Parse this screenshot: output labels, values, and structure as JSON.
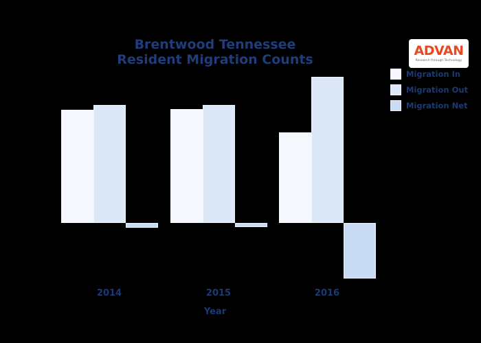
{
  "page": {
    "background": "#000000"
  },
  "title": {
    "line1": "Brentwood Tennessee",
    "line2": "Resident Migration Counts",
    "color": "#1f3d7a"
  },
  "logo": {
    "brand": "ADVAN",
    "tagline": "Research through Technology",
    "brand_color": "#e8491f",
    "box_color": "#ffffff"
  },
  "legend": {
    "items": [
      {
        "label": "Migration In",
        "color": "#f5f8fd"
      },
      {
        "label": "Migration Out",
        "color": "#dce7f8"
      },
      {
        "label": "Migration Net",
        "color": "#c9dcf3"
      }
    ],
    "position": "upper right"
  },
  "x_axis": {
    "label": "Year",
    "ticks": [
      "2014",
      "2015",
      "2016"
    ]
  },
  "chart_data": {
    "type": "bar",
    "title": "Brentwood Tennessee Resident Migration Counts",
    "categories": [
      "2014",
      "2015",
      "2016"
    ],
    "series": [
      {
        "name": "Migration In",
        "color": "#f5f8fd",
        "values": [
          165,
          166,
          132
        ]
      },
      {
        "name": "Migration Out",
        "color": "#dce7f8",
        "values": [
          172,
          172,
          213
        ]
      },
      {
        "name": "Migration Net",
        "color": "#c9dcf3",
        "values": [
          -7,
          -6,
          -81
        ]
      }
    ],
    "xlabel": "Year",
    "ylabel": "",
    "y_axis_visible": false,
    "grid": false,
    "legend_position": "upper right",
    "ylim": [
      -100,
      230
    ],
    "note": "y-axis has no visible tick labels; values are relative bar heights estimated from pixels"
  }
}
